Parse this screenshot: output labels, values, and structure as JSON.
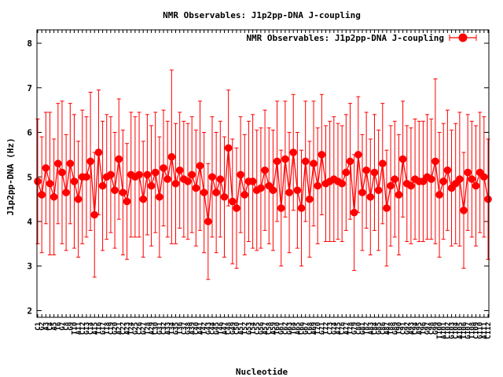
{
  "chart_data": {
    "type": "line",
    "title": "NMR Observables: J1p2pp-DNA J-coupling",
    "xlabel": "Nucleotide",
    "ylabel": "J1p2pp-DNA (Hz)",
    "ylim": [
      1.85,
      8.3
    ],
    "yticks": [
      2,
      3,
      4,
      5,
      6,
      7,
      8
    ],
    "grid": false,
    "legend_position": "top-right",
    "series": [
      {
        "name": "NMR Observables: J1p2pp-DNA J-coupling",
        "color": "#ff0000",
        "style": "line-with-markers-and-errorbars",
        "values": [
          4.9,
          4.6,
          5.2,
          4.85,
          4.55,
          5.3,
          5.1,
          4.65,
          5.3,
          4.9,
          4.5,
          5.0,
          5.0,
          5.35,
          4.15,
          5.55,
          4.8,
          5.0,
          5.05,
          4.7,
          5.4,
          4.65,
          4.45,
          5.05,
          5.0,
          5.05,
          4.5,
          5.05,
          4.8,
          5.1,
          4.55,
          5.2,
          4.95,
          5.45,
          4.85,
          5.15,
          4.95,
          4.9,
          5.05,
          4.75,
          5.25,
          4.65,
          4.0,
          5.0,
          4.65,
          4.95,
          4.55,
          5.65,
          4.45,
          4.3,
          5.05,
          4.6,
          4.9,
          4.9,
          4.7,
          4.75,
          5.15,
          4.8,
          4.7,
          5.35,
          4.3,
          5.4,
          4.65,
          5.55,
          4.7,
          4.3,
          5.35,
          4.5,
          5.3,
          4.8,
          5.5,
          4.85,
          4.9,
          4.95,
          4.9,
          4.85,
          5.1,
          5.35,
          4.2,
          5.5,
          4.65,
          5.15,
          4.55,
          5.1,
          4.7,
          5.3,
          4.3,
          4.8,
          4.95,
          4.6,
          5.4,
          4.85,
          4.8,
          4.95,
          4.9,
          4.9,
          5.0,
          4.95,
          5.35,
          4.6,
          4.9,
          5.15,
          4.75,
          4.85,
          4.95,
          4.25,
          5.1,
          4.95,
          4.8,
          5.1,
          5.0,
          4.5
        ],
        "errors": [
          1.4,
          1.3,
          1.25,
          1.6,
          1.3,
          1.35,
          1.6,
          1.3,
          1.35,
          1.5,
          1.3,
          1.5,
          1.35,
          1.55,
          1.4,
          1.4,
          1.45,
          1.4,
          1.3,
          1.3,
          1.35,
          1.4,
          1.3,
          1.4,
          1.35,
          1.4,
          1.3,
          1.35,
          1.35,
          1.35,
          1.35,
          1.3,
          1.3,
          1.95,
          1.35,
          1.3,
          1.3,
          1.3,
          1.3,
          1.3,
          1.45,
          1.35,
          1.3,
          1.35,
          1.35,
          1.3,
          1.35,
          1.3,
          1.4,
          1.35,
          1.3,
          1.35,
          1.35,
          1.5,
          1.35,
          1.35,
          1.35,
          1.3,
          1.35,
          1.35,
          1.3,
          1.3,
          1.35,
          1.3,
          1.3,
          1.3,
          1.35,
          1.3,
          1.4,
          1.3,
          1.35,
          1.3,
          1.35,
          1.4,
          1.3,
          1.3,
          1.3,
          1.3,
          1.3,
          1.3,
          1.3,
          1.3,
          1.3,
          1.3,
          1.35,
          1.35,
          1.3,
          1.35,
          1.3,
          1.35,
          1.3,
          1.3,
          1.3,
          1.35,
          1.35,
          1.35,
          1.4,
          1.35,
          1.85,
          1.4,
          1.3,
          1.35,
          1.3,
          1.35,
          1.5,
          1.3,
          1.3,
          1.3,
          1.35,
          1.35,
          1.35,
          1.35
        ]
      }
    ],
    "categories": [
      "C1",
      "G2",
      "A3",
      "C4",
      "A5",
      "T6",
      "G7",
      "C8",
      "G9",
      "T10",
      "A11",
      "C12",
      "G13",
      "C14",
      "A15",
      "T16",
      "G17",
      "T18",
      "C19",
      "G20",
      "A21",
      "C22",
      "A23",
      "T24",
      "G25",
      "C26",
      "G27",
      "T28",
      "A29",
      "C30",
      "G31",
      "C32",
      "A33",
      "T34",
      "G35",
      "T36",
      "C37",
      "G38",
      "A39",
      "C40",
      "A41",
      "T42",
      "G43",
      "C44",
      "G45",
      "T46",
      "A47",
      "C48",
      "G49",
      "C50",
      "A51",
      "T52",
      "G53",
      "T54",
      "C55",
      "G56",
      "A57",
      "C58",
      "A59",
      "T60",
      "G61",
      "C62",
      "G63",
      "T64",
      "A65",
      "C66",
      "G67",
      "C68",
      "A69",
      "T70",
      "G71",
      "T72",
      "C73",
      "G74",
      "A75",
      "C76",
      "A77",
      "T78",
      "G79",
      "C80",
      "G81",
      "T82",
      "A83",
      "C84",
      "G85",
      "C86",
      "A87",
      "T88",
      "G89",
      "T90",
      "C91",
      "G92",
      "A93",
      "C94",
      "A95",
      "T96",
      "G97",
      "C98",
      "G99",
      "T100",
      "A101",
      "C102",
      "G103",
      "C104",
      "A105",
      "T106",
      "G107",
      "T108",
      "C109",
      "G110",
      "A111",
      "C112"
    ]
  }
}
